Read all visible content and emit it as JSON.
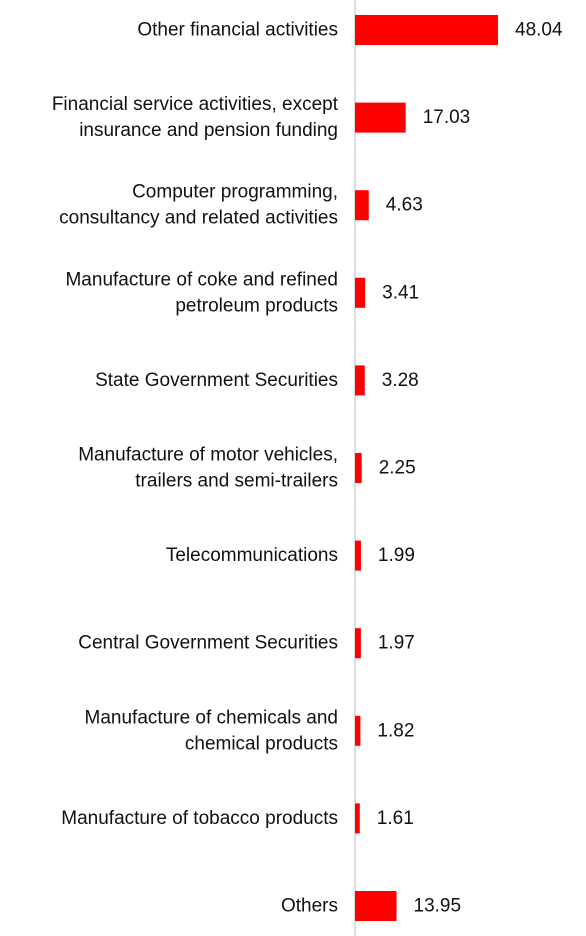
{
  "colors": {
    "bar": "#ff0000",
    "axis": "#d0d0d0",
    "text": "#111111"
  },
  "chart_data": {
    "type": "bar",
    "orientation": "horizontal",
    "categories": [
      [
        "Other financial activities"
      ],
      [
        "Financial service activities, except",
        "insurance and pension funding"
      ],
      [
        "Computer programming,",
        "consultancy and related activities"
      ],
      [
        "Manufacture of coke and refined",
        "petroleum products"
      ],
      [
        "State Government Securities"
      ],
      [
        "Manufacture of motor vehicles,",
        "trailers and semi-trailers"
      ],
      [
        "Telecommunications"
      ],
      [
        "Central Government Securities"
      ],
      [
        "Manufacture of chemicals and",
        "chemical products"
      ],
      [
        "Manufacture of tobacco products"
      ],
      [
        "Others"
      ]
    ],
    "values": [
      48.04,
      17.03,
      4.63,
      3.41,
      3.28,
      2.25,
      1.99,
      1.97,
      1.82,
      1.61,
      13.95
    ],
    "value_labels": [
      "48.04",
      "17.03",
      "4.63",
      "3.41",
      "3.28",
      "2.25",
      "1.99",
      "1.97",
      "1.82",
      "1.61",
      "13.95"
    ],
    "xlim": [
      0,
      48.04
    ],
    "grid": false,
    "legend": "none"
  }
}
